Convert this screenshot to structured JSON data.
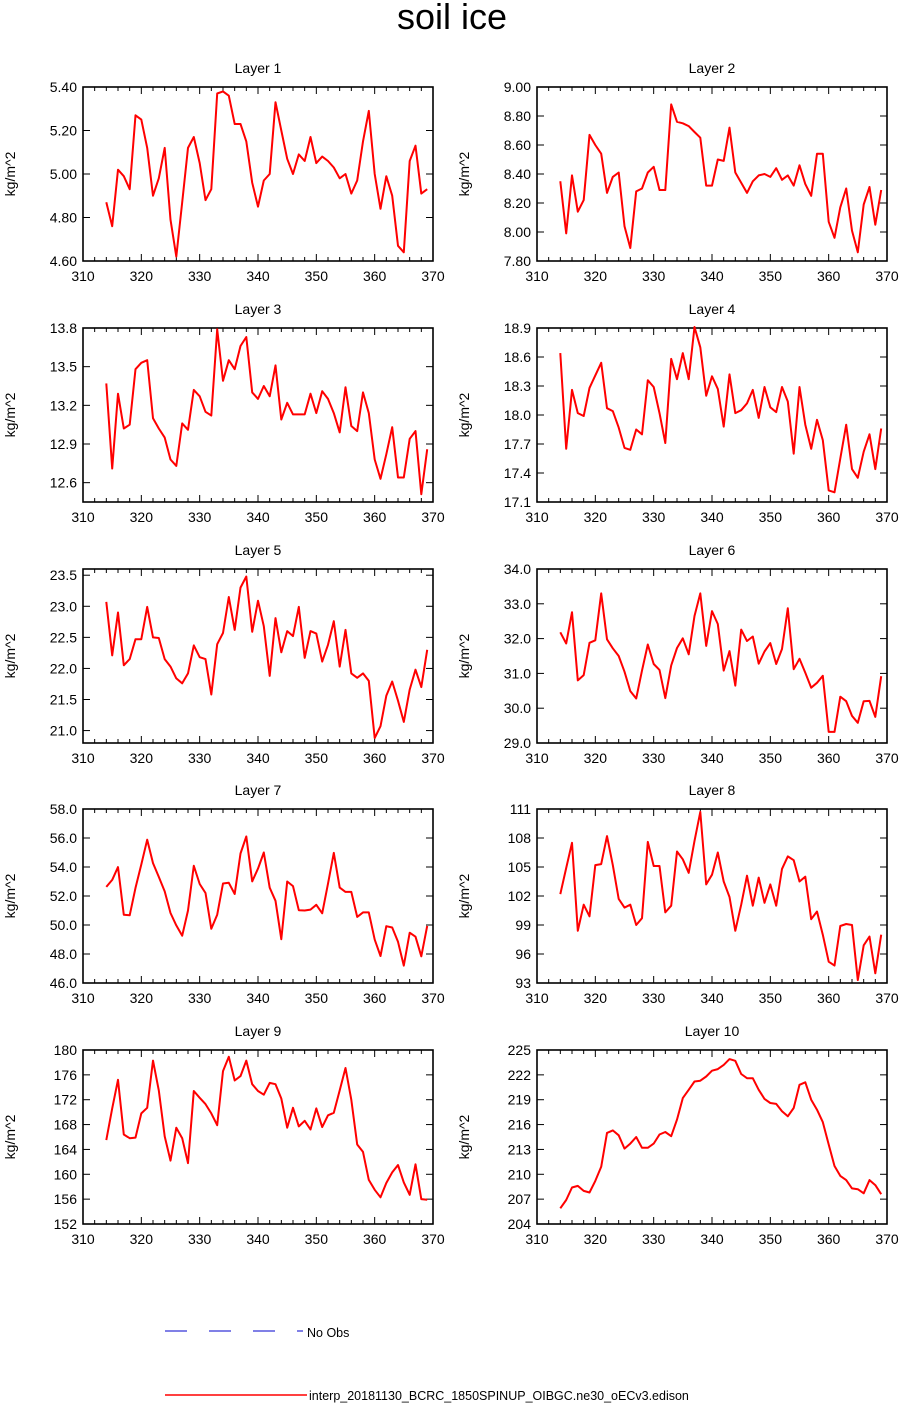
{
  "page": {
    "title": "soil ice"
  },
  "colors": {
    "model_line": "#ff0000",
    "obs_line": "#0000cc",
    "axes": "#000000"
  },
  "legend": {
    "obs_label": "No Obs",
    "model_label": "interp_20181130_BCRC_1850SPINUP_OIBGC.ne30_oECv3.edison"
  },
  "chart_data": [
    {
      "type": "line",
      "title": "Layer 1",
      "ylabel": "kg/m^2",
      "xlim": [
        310,
        370
      ],
      "xticks": [
        310,
        320,
        330,
        340,
        350,
        360,
        370
      ],
      "ylim": [
        4.6,
        5.4
      ],
      "yticks": [
        "4.60",
        "4.80",
        "5.00",
        "5.20",
        "5.40"
      ],
      "x_start": 314,
      "values": [
        4.87,
        4.76,
        5.02,
        4.99,
        4.93,
        5.27,
        5.25,
        5.12,
        4.9,
        4.98,
        5.12,
        4.79,
        4.62,
        4.87,
        5.12,
        5.17,
        5.05,
        4.88,
        4.93,
        5.37,
        5.38,
        5.36,
        5.23,
        5.23,
        5.15,
        4.96,
        4.85,
        4.97,
        5.0,
        5.33,
        5.2,
        5.07,
        5.0,
        5.09,
        5.06,
        5.17,
        5.05,
        5.08,
        5.06,
        5.03,
        4.98,
        5.0,
        4.91,
        4.97,
        5.15,
        5.29,
        5.0,
        4.84,
        4.99,
        4.9,
        4.67,
        4.64,
        5.06,
        5.13,
        4.91,
        4.93
      ]
    },
    {
      "type": "line",
      "title": "Layer 2",
      "ylabel": "kg/m^2",
      "xlim": [
        310,
        370
      ],
      "xticks": [
        310,
        320,
        330,
        340,
        350,
        360,
        370
      ],
      "ylim": [
        7.8,
        9.0
      ],
      "yticks": [
        "7.80",
        "8.00",
        "8.20",
        "8.40",
        "8.60",
        "8.80",
        "9.00"
      ],
      "x_start": 314,
      "values": [
        8.35,
        7.99,
        8.39,
        8.14,
        8.22,
        8.67,
        8.6,
        8.54,
        8.27,
        8.38,
        8.41,
        8.04,
        7.89,
        8.28,
        8.3,
        8.41,
        8.45,
        8.29,
        8.29,
        8.88,
        8.76,
        8.75,
        8.73,
        8.69,
        8.65,
        8.32,
        8.32,
        8.5,
        8.49,
        8.72,
        8.41,
        8.34,
        8.27,
        8.35,
        8.39,
        8.4,
        8.38,
        8.44,
        8.36,
        8.39,
        8.32,
        8.46,
        8.33,
        8.25,
        8.54,
        8.54,
        8.07,
        7.96,
        8.17,
        8.3,
        8.01,
        7.86,
        8.19,
        8.31,
        8.05,
        8.29
      ]
    },
    {
      "type": "line",
      "title": "Layer 3",
      "ylabel": "kg/m^2",
      "xlim": [
        310,
        370
      ],
      "xticks": [
        310,
        320,
        330,
        340,
        350,
        360,
        370
      ],
      "ylim": [
        12.45,
        13.8
      ],
      "yticks": [
        "12.6",
        "12.9",
        "13.2",
        "13.5",
        "13.8"
      ],
      "x_start": 314,
      "values": [
        13.37,
        12.71,
        13.29,
        13.02,
        13.05,
        13.48,
        13.53,
        13.55,
        13.1,
        13.02,
        12.95,
        12.78,
        12.73,
        13.06,
        13.01,
        13.32,
        13.27,
        13.15,
        13.12,
        13.79,
        13.39,
        13.55,
        13.48,
        13.66,
        13.73,
        13.3,
        13.25,
        13.35,
        13.27,
        13.51,
        13.09,
        13.22,
        13.13,
        13.13,
        13.13,
        13.29,
        13.14,
        13.31,
        13.25,
        13.14,
        12.99,
        13.34,
        13.04,
        13.0,
        13.3,
        13.14,
        12.78,
        12.63,
        12.82,
        13.03,
        12.64,
        12.64,
        12.94,
        13.0,
        12.51,
        12.86
      ]
    },
    {
      "type": "line",
      "title": "Layer 4",
      "ylabel": "kg/m^2",
      "xlim": [
        310,
        370
      ],
      "xticks": [
        310,
        320,
        330,
        340,
        350,
        360,
        370
      ],
      "ylim": [
        17.1,
        18.9
      ],
      "yticks": [
        "17.1",
        "17.4",
        "17.7",
        "18.0",
        "18.3",
        "18.6",
        "18.9"
      ],
      "x_start": 314,
      "values": [
        18.64,
        17.65,
        18.26,
        18.02,
        17.99,
        18.28,
        18.41,
        18.54,
        18.07,
        18.04,
        17.87,
        17.66,
        17.64,
        17.85,
        17.8,
        18.36,
        18.29,
        18.02,
        17.71,
        18.58,
        18.37,
        18.64,
        18.37,
        18.91,
        18.7,
        18.2,
        18.4,
        18.27,
        17.88,
        18.42,
        18.02,
        18.05,
        18.12,
        18.26,
        17.97,
        18.29,
        18.08,
        18.03,
        18.29,
        18.14,
        17.6,
        18.29,
        17.9,
        17.65,
        17.95,
        17.74,
        17.22,
        17.2,
        17.55,
        17.9,
        17.44,
        17.35,
        17.62,
        17.8,
        17.44,
        17.86
      ]
    },
    {
      "type": "line",
      "title": "Layer 5",
      "ylabel": "kg/m^2",
      "xlim": [
        310,
        370
      ],
      "xticks": [
        310,
        320,
        330,
        340,
        350,
        360,
        370
      ],
      "ylim": [
        20.8,
        23.6
      ],
      "yticks": [
        "21.0",
        "21.5",
        "22.0",
        "22.5",
        "23.0",
        "23.5"
      ],
      "x_start": 314,
      "values": [
        23.07,
        22.21,
        22.9,
        22.05,
        22.15,
        22.47,
        22.47,
        22.99,
        22.5,
        22.49,
        22.15,
        22.03,
        21.84,
        21.76,
        21.92,
        22.37,
        22.18,
        22.15,
        21.58,
        22.39,
        22.57,
        23.15,
        22.62,
        23.3,
        23.48,
        22.59,
        23.09,
        22.68,
        21.88,
        22.81,
        22.26,
        22.6,
        22.52,
        22.99,
        22.17,
        22.6,
        22.56,
        22.11,
        22.38,
        22.76,
        22.03,
        22.62,
        21.92,
        21.85,
        21.92,
        21.8,
        20.88,
        21.07,
        21.56,
        21.79,
        21.48,
        21.14,
        21.66,
        21.98,
        21.7,
        22.3
      ]
    },
    {
      "type": "line",
      "title": "Layer 6",
      "ylabel": "kg/m^2",
      "xlim": [
        310,
        370
      ],
      "xticks": [
        310,
        320,
        330,
        340,
        350,
        360,
        370
      ],
      "ylim": [
        29.0,
        34.0
      ],
      "yticks": [
        "29.0",
        "30.0",
        "31.0",
        "32.0",
        "33.0",
        "34.0"
      ],
      "x_start": 314,
      "values": [
        32.18,
        31.86,
        32.76,
        30.8,
        30.95,
        31.88,
        31.95,
        33.3,
        31.98,
        31.72,
        31.5,
        31.05,
        30.49,
        30.28,
        31.08,
        31.83,
        31.27,
        31.1,
        30.29,
        31.23,
        31.73,
        32.01,
        31.55,
        32.65,
        33.3,
        31.79,
        32.79,
        32.42,
        31.08,
        31.64,
        30.65,
        32.26,
        31.93,
        32.06,
        31.28,
        31.63,
        31.87,
        31.27,
        31.7,
        32.87,
        31.12,
        31.42,
        31.02,
        30.59,
        30.73,
        30.93,
        29.32,
        29.32,
        30.33,
        30.2,
        29.78,
        29.58,
        30.2,
        30.21,
        29.75,
        30.92
      ]
    },
    {
      "type": "line",
      "title": "Layer 7",
      "ylabel": "kg/m^2",
      "xlim": [
        310,
        370
      ],
      "xticks": [
        310,
        320,
        330,
        340,
        350,
        360,
        370
      ],
      "ylim": [
        46.0,
        58.0
      ],
      "yticks": [
        "46.0",
        "48.0",
        "50.0",
        "52.0",
        "54.0",
        "56.0",
        "58.0"
      ],
      "x_start": 314,
      "values": [
        52.63,
        53.11,
        53.99,
        50.71,
        50.67,
        52.56,
        54.17,
        55.88,
        54.27,
        53.32,
        52.32,
        50.83,
        49.97,
        49.26,
        51.0,
        54.08,
        52.83,
        52.21,
        49.74,
        50.71,
        52.86,
        52.91,
        52.14,
        54.93,
        56.1,
        53.01,
        53.89,
        55.0,
        52.57,
        51.67,
        49.02,
        53.0,
        52.68,
        51.02,
        51.0,
        51.06,
        51.39,
        50.81,
        52.85,
        54.97,
        52.58,
        52.28,
        52.28,
        50.56,
        50.87,
        50.87,
        48.99,
        47.86,
        49.92,
        49.83,
        48.84,
        47.2,
        49.47,
        49.19,
        47.84,
        49.94
      ]
    },
    {
      "type": "line",
      "title": "Layer 8",
      "ylabel": "kg/m^2",
      "xlim": [
        310,
        370
      ],
      "xticks": [
        310,
        320,
        330,
        340,
        350,
        360,
        370
      ],
      "ylim": [
        93,
        111
      ],
      "yticks": [
        "93",
        "96",
        "99",
        "102",
        "105",
        "108",
        "111"
      ],
      "x_start": 314,
      "values": [
        102.2,
        104.9,
        107.5,
        98.4,
        101.1,
        99.9,
        105.2,
        105.3,
        108.2,
        105.2,
        101.7,
        100.8,
        101.1,
        99.0,
        99.7,
        107.6,
        105.1,
        105.1,
        100.3,
        101.0,
        106.6,
        105.8,
        104.4,
        107.7,
        110.7,
        103.2,
        104.2,
        106.5,
        103.5,
        101.9,
        98.4,
        101.1,
        104.1,
        101.0,
        103.9,
        101.3,
        103.2,
        101.0,
        104.8,
        106.1,
        105.7,
        103.5,
        104.0,
        99.6,
        100.4,
        98.0,
        95.2,
        94.8,
        98.9,
        99.1,
        99.0,
        93.3,
        96.9,
        97.8,
        94.0,
        98.0
      ]
    },
    {
      "type": "line",
      "title": "Layer 9",
      "ylabel": "kg/m^2",
      "xlim": [
        310,
        370
      ],
      "xticks": [
        310,
        320,
        330,
        340,
        350,
        360,
        370
      ],
      "ylim": [
        152,
        180
      ],
      "yticks": [
        "152",
        "156",
        "160",
        "164",
        "168",
        "172",
        "176",
        "180"
      ],
      "x_start": 314,
      "values": [
        165.5,
        170.6,
        175.2,
        166.4,
        165.8,
        165.9,
        169.8,
        170.7,
        178.3,
        173.5,
        166.1,
        162.2,
        167.5,
        165.8,
        161.8,
        173.4,
        172.3,
        171.3,
        169.8,
        167.9,
        176.6,
        178.9,
        175.1,
        175.8,
        178.3,
        174.5,
        173.4,
        172.8,
        174.7,
        174.5,
        172.2,
        167.5,
        170.7,
        167.7,
        168.6,
        167.2,
        170.6,
        167.6,
        169.5,
        169.9,
        173.5,
        177.1,
        172.0,
        164.8,
        163.6,
        159.1,
        157.5,
        156.3,
        158.6,
        160.3,
        161.5,
        158.7,
        156.7,
        161.6,
        156.0,
        155.9
      ]
    },
    {
      "type": "line",
      "title": "Layer 10",
      "ylabel": "kg/m^2",
      "xlim": [
        310,
        370
      ],
      "xticks": [
        310,
        320,
        330,
        340,
        350,
        360,
        370
      ],
      "ylim": [
        204,
        225
      ],
      "yticks": [
        "204",
        "207",
        "210",
        "213",
        "216",
        "219",
        "222",
        "225"
      ],
      "x_start": 314,
      "values": [
        205.9,
        206.9,
        208.4,
        208.6,
        208.0,
        207.8,
        209.2,
        210.9,
        215.0,
        215.3,
        214.7,
        213.1,
        213.7,
        214.5,
        213.2,
        213.2,
        213.7,
        214.8,
        215.1,
        214.6,
        216.6,
        219.2,
        220.2,
        221.2,
        221.3,
        221.8,
        222.5,
        222.7,
        223.2,
        223.9,
        223.7,
        222.1,
        221.6,
        221.6,
        220.2,
        219.1,
        218.6,
        218.5,
        217.6,
        217.0,
        218.0,
        220.8,
        221.1,
        219.0,
        217.8,
        216.3,
        213.6,
        211.0,
        209.8,
        209.3,
        208.3,
        208.2,
        207.7,
        209.3,
        208.7,
        207.6
      ]
    }
  ]
}
